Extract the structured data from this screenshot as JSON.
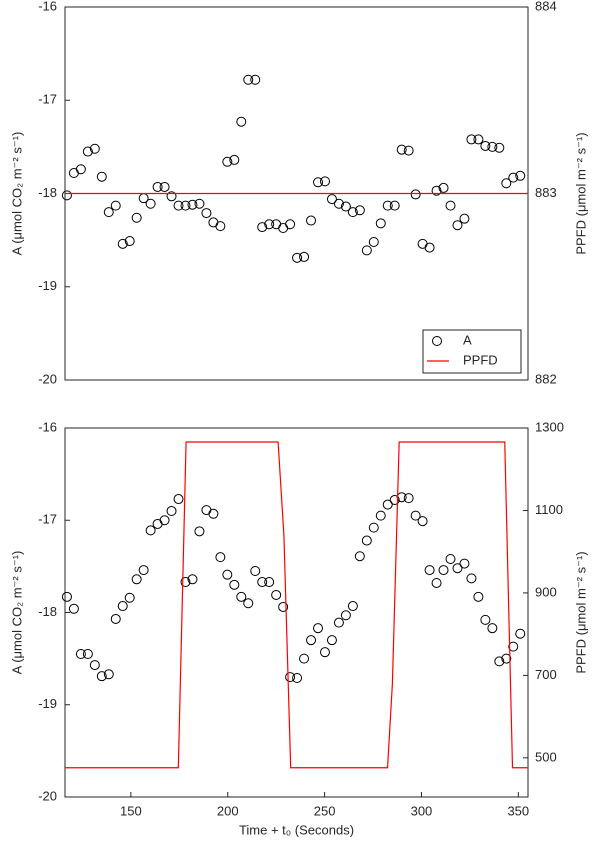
{
  "chart_data": [
    {
      "type": "scatter",
      "ylabel": "A (μmol CO₂ m⁻² s⁻¹)",
      "y2label": "PPFD (μmol m⁻² s⁻¹)",
      "xlim": [
        116,
        355
      ],
      "ylim": [
        -20,
        -16
      ],
      "yticks": [
        -16,
        -17,
        -18,
        -19,
        -20
      ],
      "y2lim": [
        882,
        884
      ],
      "y2ticks": [
        882,
        883,
        884
      ],
      "legend": "lower right",
      "x": [
        117,
        120.6,
        124.2,
        127.8,
        131.4,
        135,
        138.6,
        142.2,
        145.8,
        149.4,
        153,
        156.6,
        160.2,
        163.8,
        167.4,
        171,
        174.6,
        178.2,
        181.8,
        185.4,
        189,
        192.6,
        196.2,
        199.8,
        203.4,
        207,
        210.6,
        214.2,
        217.8,
        221.4,
        225,
        228.6,
        232.2,
        235.8,
        239.4,
        243,
        246.6,
        250.2,
        253.8,
        257.4,
        261,
        264.6,
        268.2,
        271.8,
        275.4,
        279,
        282.6,
        286.2,
        289.8,
        293.4,
        297,
        300.6,
        304.2,
        307.8,
        311.4,
        315,
        318.6,
        322.2,
        325.8,
        329.4,
        333,
        336.6,
        340.2,
        343.8,
        347.4,
        351
      ],
      "series": [
        {
          "name": "A",
          "color": "#000000",
          "values": [
            -18.02,
            -17.78,
            -17.74,
            -17.55,
            -17.52,
            -17.82,
            -18.2,
            -18.13,
            -18.54,
            -18.51,
            -18.26,
            -18.05,
            -18.11,
            -17.93,
            -17.93,
            -18.03,
            -18.13,
            -18.13,
            -18.12,
            -18.11,
            -18.21,
            -18.31,
            -18.35,
            -17.66,
            -17.64,
            -17.23,
            -16.78,
            -16.78,
            -18.36,
            -18.33,
            -18.33,
            -18.37,
            -18.33,
            -18.69,
            -18.68,
            -18.29,
            -17.88,
            -17.87,
            -18.06,
            -18.11,
            -18.14,
            -18.2,
            -18.18,
            -18.61,
            -18.52,
            -18.32,
            -18.13,
            -18.13,
            -17.53,
            -17.54,
            -18.01,
            -18.54,
            -18.58,
            -17.97,
            -17.94,
            -18.13,
            -18.34,
            -18.27,
            -17.42,
            -17.42,
            -17.49,
            -17.5,
            -17.51,
            -17.89,
            -17.83,
            -17.81
          ]
        },
        {
          "name": "PPFD",
          "type": "line",
          "color": "#ff0000",
          "axis": "y2",
          "x": [
            116,
            355
          ],
          "values": [
            883,
            883
          ]
        }
      ]
    },
    {
      "type": "scatter",
      "ylabel": "A (μmol CO₂ m⁻² s⁻¹)",
      "y2label": "PPFD (μmol m⁻² s⁻¹)",
      "xlabel": "Time +  t₀ (Seconds)",
      "xlim": [
        116,
        355
      ],
      "xticks": [
        150,
        200,
        250,
        300,
        350
      ],
      "ylim": [
        -20,
        -16
      ],
      "yticks": [
        -16,
        -17,
        -18,
        -19,
        -20
      ],
      "y2lim": [
        405,
        1300
      ],
      "y2ticks": [
        500,
        700,
        900,
        1100,
        1300
      ],
      "x": [
        117,
        120.6,
        124.2,
        127.8,
        131.4,
        135,
        138.6,
        142.2,
        145.8,
        149.4,
        153,
        156.6,
        160.2,
        163.8,
        167.4,
        171,
        174.6,
        178.2,
        181.8,
        185.4,
        189,
        192.6,
        196.2,
        199.8,
        203.4,
        207,
        210.6,
        214.2,
        217.8,
        221.4,
        225,
        228.6,
        232.2,
        235.8,
        239.4,
        243,
        246.6,
        250.2,
        253.8,
        257.4,
        261,
        264.6,
        268.2,
        271.8,
        275.4,
        279,
        282.6,
        286.2,
        289.8,
        293.4,
        297,
        300.6,
        304.2,
        307.8,
        311.4,
        315,
        318.6,
        322.2,
        325.8,
        329.4,
        333,
        336.6,
        340.2,
        343.8,
        347.4,
        351
      ],
      "series": [
        {
          "color": "#000000",
          "values": [
            -17.83,
            -17.96,
            -18.45,
            -18.45,
            -18.57,
            -18.69,
            -18.67,
            -18.07,
            -17.93,
            -17.84,
            -17.64,
            -17.54,
            -17.11,
            -17.04,
            -17,
            -16.9,
            -16.77,
            -17.67,
            -17.64,
            -17.12,
            -16.89,
            -16.93,
            -17.4,
            -17.59,
            -17.7,
            -17.83,
            -17.9,
            -17.55,
            -17.67,
            -17.67,
            -17.81,
            -17.94,
            -18.7,
            -18.71,
            -18.5,
            -18.3,
            -18.17,
            -18.43,
            -18.3,
            -18.11,
            -18.03,
            -17.93,
            -17.39,
            -17.22,
            -17.08,
            -16.95,
            -16.83,
            -16.78,
            -16.75,
            -16.76,
            -16.95,
            -17.01,
            -17.54,
            -17.68,
            -17.54,
            -17.42,
            -17.52,
            -17.47,
            -17.63,
            -17.83,
            -18.08,
            -18.17,
            -18.53,
            -18.5,
            -18.37,
            -18.23
          ]
        },
        {
          "type": "line",
          "color": "#ff0000",
          "axis": "y2",
          "x": [
            116,
            174.5,
            178.5,
            226,
            229,
            232.5,
            282.5,
            285,
            288.5,
            343,
            347,
            355
          ],
          "values": [
            476,
            476,
            1266,
            1266,
            1040,
            476,
            476,
            680,
            1266,
            1266,
            476,
            476
          ]
        }
      ]
    }
  ]
}
